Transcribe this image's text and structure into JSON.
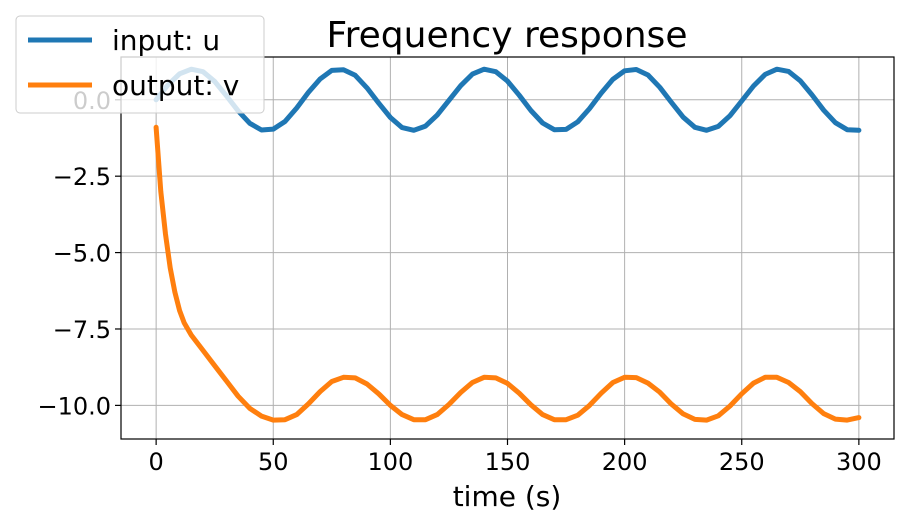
{
  "chart_data": {
    "type": "line",
    "title": "Frequency response",
    "xlabel": "time (s)",
    "ylabel": "",
    "xlim": [
      -15,
      315
    ],
    "ylim": [
      -11.1,
      1.4
    ],
    "xticks": [
      0,
      50,
      100,
      150,
      200,
      250,
      300
    ],
    "xtick_labels": [
      "0",
      "50",
      "100",
      "150",
      "200",
      "250",
      "300"
    ],
    "yticks": [
      0.0,
      -2.5,
      -5.0,
      -7.5,
      -10.0
    ],
    "ytick_labels": [
      "0.0",
      "−2.5",
      "−5.0",
      "−7.5",
      "−10.0"
    ],
    "grid": true,
    "legend_position": "top-left",
    "series": [
      {
        "name": "input: u",
        "color": "#1f77b4",
        "x": [
          0,
          5,
          10,
          15,
          20,
          25,
          30,
          35,
          40,
          45,
          50,
          55,
          60,
          65,
          70,
          75,
          80,
          85,
          90,
          95,
          100,
          105,
          110,
          115,
          120,
          125,
          130,
          135,
          140,
          145,
          150,
          155,
          160,
          165,
          170,
          175,
          180,
          185,
          190,
          195,
          200,
          205,
          210,
          215,
          220,
          225,
          230,
          235,
          240,
          245,
          250,
          255,
          260,
          265,
          270,
          275,
          280,
          285,
          290,
          295,
          300
        ],
        "y": [
          0.0,
          0.48,
          0.85,
          1.0,
          0.92,
          0.6,
          0.13,
          -0.36,
          -0.77,
          -0.99,
          -0.96,
          -0.71,
          -0.27,
          0.24,
          0.68,
          0.96,
          0.98,
          0.8,
          0.39,
          -0.11,
          -0.58,
          -0.91,
          -1.0,
          -0.86,
          -0.5,
          -0.02,
          0.46,
          0.84,
          1.0,
          0.92,
          0.61,
          0.15,
          -0.35,
          -0.76,
          -0.98,
          -0.97,
          -0.72,
          -0.29,
          0.22,
          0.67,
          0.95,
          0.99,
          0.81,
          0.41,
          -0.09,
          -0.57,
          -0.9,
          -1.0,
          -0.87,
          -0.52,
          -0.04,
          0.45,
          0.83,
          1.0,
          0.93,
          0.62,
          0.16,
          -0.34,
          -0.75,
          -0.98,
          -1.0
        ]
      },
      {
        "name": "output: v",
        "color": "#ff7f0e",
        "x": [
          0,
          2,
          4,
          6,
          8,
          10,
          12,
          15,
          20,
          25,
          30,
          35,
          40,
          45,
          50,
          55,
          60,
          65,
          70,
          75,
          80,
          85,
          90,
          95,
          100,
          105,
          110,
          115,
          120,
          125,
          130,
          135,
          140,
          145,
          150,
          155,
          160,
          165,
          170,
          175,
          180,
          185,
          190,
          195,
          200,
          205,
          210,
          215,
          220,
          225,
          230,
          235,
          240,
          245,
          250,
          255,
          260,
          265,
          270,
          275,
          280,
          285,
          290,
          295,
          300
        ],
        "y": [
          -0.9,
          -3.0,
          -4.4,
          -5.5,
          -6.3,
          -6.9,
          -7.3,
          -7.7,
          -8.2,
          -8.7,
          -9.2,
          -9.7,
          -10.1,
          -10.35,
          -10.48,
          -10.47,
          -10.3,
          -9.95,
          -9.55,
          -9.22,
          -9.08,
          -9.1,
          -9.3,
          -9.62,
          -10.0,
          -10.3,
          -10.47,
          -10.47,
          -10.3,
          -9.97,
          -9.58,
          -9.25,
          -9.08,
          -9.1,
          -9.28,
          -9.6,
          -9.98,
          -10.3,
          -10.47,
          -10.47,
          -10.32,
          -10.0,
          -9.6,
          -9.25,
          -9.08,
          -9.09,
          -9.27,
          -9.57,
          -9.96,
          -10.28,
          -10.46,
          -10.48,
          -10.34,
          -10.02,
          -9.62,
          -9.27,
          -9.08,
          -9.08,
          -9.25,
          -9.55,
          -9.94,
          -10.27,
          -10.45,
          -10.48,
          -10.4
        ]
      }
    ]
  }
}
